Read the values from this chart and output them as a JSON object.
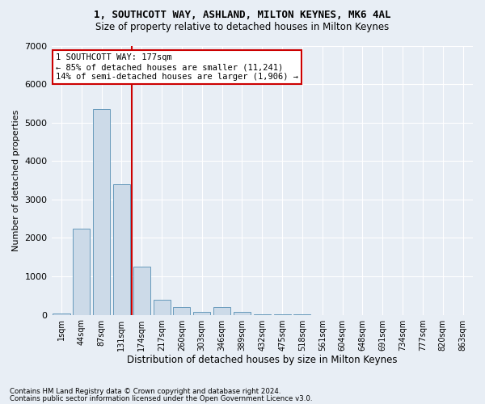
{
  "title": "1, SOUTHCOTT WAY, ASHLAND, MILTON KEYNES, MK6 4AL",
  "subtitle": "Size of property relative to detached houses in Milton Keynes",
  "xlabel": "Distribution of detached houses by size in Milton Keynes",
  "ylabel": "Number of detached properties",
  "footnote1": "Contains HM Land Registry data © Crown copyright and database right 2024.",
  "footnote2": "Contains public sector information licensed under the Open Government Licence v3.0.",
  "bar_labels": [
    "1sqm",
    "44sqm",
    "87sqm",
    "131sqm",
    "174sqm",
    "217sqm",
    "260sqm",
    "303sqm",
    "346sqm",
    "389sqm",
    "432sqm",
    "475sqm",
    "518sqm",
    "561sqm",
    "604sqm",
    "648sqm",
    "691sqm",
    "734sqm",
    "777sqm",
    "820sqm",
    "863sqm"
  ],
  "bar_values": [
    30,
    2250,
    5350,
    3400,
    1250,
    400,
    200,
    80,
    200,
    80,
    20,
    5,
    2,
    1,
    0,
    0,
    0,
    0,
    0,
    0,
    0
  ],
  "bar_color": "#ccdae8",
  "bar_edgecolor": "#6699bb",
  "vline_color": "#cc0000",
  "vline_pos": 3.5,
  "ylim": [
    0,
    7000
  ],
  "yticks": [
    0,
    1000,
    2000,
    3000,
    4000,
    5000,
    6000,
    7000
  ],
  "annotation_text": "1 SOUTHCOTT WAY: 177sqm\n← 85% of detached houses are smaller (11,241)\n14% of semi-detached houses are larger (1,906) →",
  "annotation_box_color": "#ffffff",
  "annotation_box_edgecolor": "#cc0000",
  "bg_color": "#e8eef5",
  "plot_bg_color": "#e8eef5",
  "grid_color": "#ffffff",
  "title_fontsize": 9,
  "subtitle_fontsize": 8.5
}
